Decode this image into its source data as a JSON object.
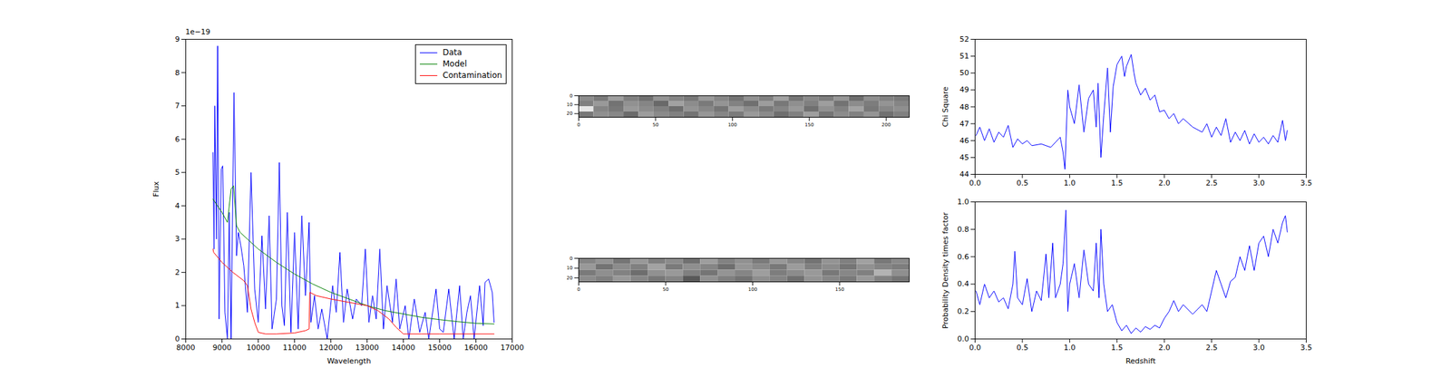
{
  "chart_data": [
    {
      "type": "line",
      "x_label": "Wavelength",
      "y_label": "Flux",
      "annotations": [
        {
          "text": "1e−19"
        }
      ],
      "xlim": [
        8000,
        17000
      ],
      "xticks": [
        8000,
        9000,
        10000,
        11000,
        12000,
        13000,
        14000,
        15000,
        16000,
        17000
      ],
      "ylim": [
        0,
        9
      ],
      "yticks": [
        0,
        1,
        2,
        3,
        4,
        5,
        6,
        7,
        8,
        9
      ],
      "grid": false,
      "legend": "upper right",
      "series": [
        {
          "name": "Data",
          "color": "#0000ff",
          "x": [
            8750,
            8780,
            8800,
            8850,
            8880,
            8920,
            8980,
            9020,
            9080,
            9150,
            9200,
            9250,
            9330,
            9400,
            9450,
            9520,
            9600,
            9700,
            9800,
            9900,
            10000,
            10100,
            10200,
            10300,
            10380,
            10500,
            10580,
            10650,
            10720,
            10800,
            10900,
            11000,
            11100,
            11200,
            11300,
            11400,
            11450,
            11550,
            11650,
            11750,
            11900,
            12050,
            12150,
            12250,
            12350,
            12450,
            12600,
            12700,
            12850,
            12950,
            13050,
            13150,
            13250,
            13350,
            13450,
            13550,
            13700,
            13800,
            13900,
            14050,
            14150,
            14300,
            14450,
            14600,
            14700,
            14900,
            15000,
            15100,
            15250,
            15400,
            15550,
            15650,
            15750,
            15850,
            15950,
            16100,
            16200,
            16250,
            16350,
            16450,
            16500
          ],
          "values": [
            5.6,
            2.7,
            7.0,
            3.0,
            8.8,
            0.6,
            5.1,
            5.2,
            0.8,
            0,
            3.8,
            0,
            7.4,
            2.5,
            3.2,
            2.8,
            2.2,
            0.8,
            5.0,
            1.5,
            0.5,
            3.1,
            0.9,
            3.7,
            0.3,
            1.2,
            5.3,
            1.0,
            0.4,
            3.8,
            0.2,
            3.2,
            0.3,
            3.7,
            1.3,
            3.5,
            0.5,
            1.3,
            0.3,
            0.9,
            0,
            1.6,
            0.8,
            2.6,
            0.5,
            1.5,
            0.6,
            1.2,
            1.0,
            2.7,
            0.5,
            1.3,
            0.6,
            2.7,
            0.3,
            1.6,
            0.5,
            1.8,
            0.3,
            1.0,
            0,
            1.2,
            0.2,
            0.8,
            0,
            1.5,
            0.3,
            0.2,
            1.5,
            0,
            1.6,
            0,
            0.8,
            1.3,
            0,
            1.6,
            0.4,
            1.7,
            1.8,
            1.4,
            0.5
          ]
        },
        {
          "name": "Model",
          "color": "#008000",
          "x": [
            8750,
            9000,
            9150,
            9250,
            9320,
            9400,
            9500,
            10000,
            10500,
            11000,
            11500,
            12000,
            12500,
            13000,
            13500,
            14000,
            14500,
            15000,
            15500,
            16000,
            16500
          ],
          "values": [
            4.2,
            3.8,
            3.5,
            4.5,
            4.6,
            3.4,
            3.2,
            2.7,
            2.3,
            1.95,
            1.65,
            1.4,
            1.2,
            1.0,
            0.85,
            0.75,
            0.65,
            0.58,
            0.52,
            0.47,
            0.45
          ]
        },
        {
          "name": "Contamination",
          "color": "#ff0000",
          "x": [
            8750,
            8770,
            9000,
            9300,
            9600,
            9700,
            9800,
            9900,
            10000,
            10200,
            10500,
            11000,
            11300,
            11400,
            11420,
            11600,
            12000,
            12500,
            13000,
            13300,
            13600,
            13800,
            14000,
            14500,
            15000,
            16500
          ],
          "values": [
            2.7,
            2.6,
            2.3,
            2.0,
            1.75,
            1.6,
            0.9,
            0.5,
            0.2,
            0.15,
            0.15,
            0.18,
            0.25,
            0.3,
            1.4,
            1.3,
            1.2,
            1.1,
            1.0,
            0.85,
            0.6,
            0.35,
            0.15,
            0.15,
            0.15,
            0.15
          ]
        }
      ]
    },
    {
      "type": "heatmap",
      "xlim": [
        0,
        215
      ],
      "xticks": [
        0,
        50,
        100,
        150,
        200
      ],
      "ylim": [
        0,
        24
      ],
      "yticks": [
        0,
        10,
        20
      ],
      "color_range": [
        0,
        1
      ],
      "cells": [
        [
          0.55,
          0.48,
          0.62,
          0.5,
          0.44,
          0.58,
          0.52,
          0.47,
          0.6,
          0.53,
          0.45,
          0.57,
          0.5,
          0.63,
          0.46,
          0.54,
          0.49,
          0.59,
          0.43,
          0.56,
          0.51,
          0.48
        ],
        [
          0.5,
          0.6,
          0.45,
          0.57,
          0.52,
          0.41,
          0.63,
          0.55,
          0.48,
          0.58,
          0.51,
          0.44,
          0.61,
          0.47,
          0.56,
          0.5,
          0.62,
          0.45,
          0.55,
          0.49,
          0.58,
          0.52
        ],
        [
          0.9,
          0.52,
          0.47,
          0.6,
          0.55,
          0.5,
          0.43,
          0.58,
          0.53,
          0.46,
          0.62,
          0.55,
          0.48,
          0.52,
          0.6,
          0.44,
          0.57,
          0.51,
          0.64,
          0.47,
          0.53,
          0.56
        ],
        [
          0.47,
          0.56,
          0.53,
          0.42,
          0.61,
          0.54,
          0.5,
          0.45,
          0.59,
          0.52,
          0.48,
          0.6,
          0.54,
          0.43,
          0.5,
          0.62,
          0.46,
          0.55,
          0.5,
          0.58,
          0.44,
          0.5
        ]
      ]
    },
    {
      "type": "heatmap",
      "xlim": [
        0,
        190
      ],
      "xticks": [
        0,
        50,
        100,
        150
      ],
      "ylim": [
        0,
        24
      ],
      "yticks": [
        0,
        10,
        20
      ],
      "color_range": [
        0,
        1
      ],
      "cells": [
        [
          0.52,
          0.58,
          0.46,
          0.6,
          0.5,
          0.55,
          0.44,
          0.62,
          0.51,
          0.57,
          0.48,
          0.6,
          0.53,
          0.45,
          0.58,
          0.5,
          0.63,
          0.47,
          0.54
        ],
        [
          0.6,
          0.45,
          0.55,
          0.5,
          0.64,
          0.48,
          0.56,
          0.52,
          0.43,
          0.59,
          0.54,
          0.47,
          0.61,
          0.5,
          0.55,
          0.46,
          0.57,
          0.52,
          0.49
        ],
        [
          0.48,
          0.56,
          0.51,
          0.43,
          0.57,
          0.6,
          0.5,
          0.46,
          0.58,
          0.52,
          0.62,
          0.49,
          0.55,
          0.6,
          0.47,
          0.53,
          0.5,
          0.7,
          0.56
        ],
        [
          0.55,
          0.5,
          0.6,
          0.53,
          0.47,
          0.52,
          0.35,
          0.57,
          0.5,
          0.45,
          0.56,
          0.52,
          0.44,
          0.58,
          0.53,
          0.48,
          0.6,
          0.51,
          0.46
        ]
      ]
    },
    {
      "type": "line",
      "y_label": "Chi Square",
      "xlim": [
        0,
        3.5
      ],
      "xticks": [
        {
          "value": 0,
          "label": "0.0"
        },
        {
          "value": 0.5,
          "label": "0.5"
        },
        {
          "value": 1,
          "label": "1.0"
        },
        {
          "value": 1.5,
          "label": "1.5"
        },
        {
          "value": 2,
          "label": "2.0"
        },
        {
          "value": 2.5,
          "label": "2.5"
        },
        {
          "value": 3,
          "label": "3.0"
        },
        {
          "value": 3.5,
          "label": "3.5"
        }
      ],
      "ylim": [
        44,
        52
      ],
      "yticks": [
        44,
        45,
        46,
        47,
        48,
        49,
        50,
        51,
        52
      ],
      "grid": false,
      "color": "#0000ff",
      "x": [
        0.01,
        0.05,
        0.1,
        0.15,
        0.2,
        0.25,
        0.3,
        0.35,
        0.4,
        0.45,
        0.5,
        0.55,
        0.6,
        0.7,
        0.8,
        0.85,
        0.9,
        0.93,
        0.95,
        0.98,
        1.0,
        1.05,
        1.1,
        1.15,
        1.2,
        1.25,
        1.28,
        1.3,
        1.33,
        1.36,
        1.4,
        1.43,
        1.46,
        1.5,
        1.55,
        1.58,
        1.6,
        1.65,
        1.68,
        1.7,
        1.75,
        1.8,
        1.85,
        1.9,
        1.95,
        2.0,
        2.05,
        2.1,
        2.15,
        2.2,
        2.3,
        2.4,
        2.45,
        2.5,
        2.55,
        2.6,
        2.65,
        2.7,
        2.75,
        2.8,
        2.85,
        2.9,
        2.95,
        3.0,
        3.05,
        3.1,
        3.15,
        3.2,
        3.25,
        3.28,
        3.3
      ],
      "values": [
        46.3,
        46.8,
        46.0,
        46.7,
        45.9,
        46.5,
        46.2,
        46.9,
        45.6,
        46.1,
        45.8,
        46.0,
        45.7,
        45.8,
        45.6,
        45.9,
        46.2,
        45.3,
        44.3,
        49.0,
        48.0,
        47.0,
        49.3,
        46.5,
        48.5,
        49.0,
        46.8,
        49.4,
        45.0,
        47.5,
        50.3,
        46.5,
        49.2,
        50.5,
        51.0,
        49.8,
        50.4,
        51.1,
        50.0,
        49.4,
        48.7,
        49.1,
        48.4,
        48.7,
        47.7,
        47.8,
        47.3,
        47.6,
        47.0,
        47.3,
        46.8,
        46.5,
        47.0,
        46.2,
        46.8,
        46.3,
        47.3,
        45.9,
        46.5,
        46.0,
        46.6,
        45.8,
        46.4,
        45.9,
        46.2,
        45.8,
        46.3,
        45.9,
        47.2,
        46.0,
        46.6
      ]
    },
    {
      "type": "line",
      "x_label": "Redshift",
      "y_label": "Probability Density times factor",
      "xlim": [
        0,
        3.5
      ],
      "xticks": [
        {
          "value": 0,
          "label": "0.0"
        },
        {
          "value": 0.5,
          "label": "0.5"
        },
        {
          "value": 1,
          "label": "1.0"
        },
        {
          "value": 1.5,
          "label": "1.5"
        },
        {
          "value": 2,
          "label": "2.0"
        },
        {
          "value": 2.5,
          "label": "2.5"
        },
        {
          "value": 3,
          "label": "3.0"
        },
        {
          "value": 3.5,
          "label": "3.5"
        }
      ],
      "ylim": [
        0,
        1
      ],
      "yticks": [
        {
          "value": 0,
          "label": "0.0"
        },
        {
          "value": 0.2,
          "label": "0.2"
        },
        {
          "value": 0.4,
          "label": "0.4"
        },
        {
          "value": 0.6,
          "label": "0.6"
        },
        {
          "value": 0.8,
          "label": "0.8"
        },
        {
          "value": 1,
          "label": "1.0"
        }
      ],
      "grid": false,
      "color": "#0000ff",
      "x": [
        0.01,
        0.05,
        0.1,
        0.15,
        0.2,
        0.25,
        0.3,
        0.35,
        0.4,
        0.42,
        0.45,
        0.5,
        0.55,
        0.6,
        0.65,
        0.7,
        0.75,
        0.78,
        0.82,
        0.85,
        0.9,
        0.93,
        0.96,
        0.98,
        1.0,
        1.05,
        1.1,
        1.15,
        1.2,
        1.25,
        1.28,
        1.31,
        1.33,
        1.36,
        1.4,
        1.45,
        1.5,
        1.55,
        1.6,
        1.65,
        1.7,
        1.75,
        1.8,
        1.85,
        1.9,
        1.95,
        2.0,
        2.05,
        2.1,
        2.15,
        2.2,
        2.3,
        2.4,
        2.45,
        2.5,
        2.55,
        2.6,
        2.65,
        2.7,
        2.75,
        2.8,
        2.85,
        2.9,
        2.95,
        3.0,
        3.05,
        3.1,
        3.15,
        3.2,
        3.25,
        3.28,
        3.3
      ],
      "values": [
        0.35,
        0.25,
        0.4,
        0.3,
        0.35,
        0.27,
        0.3,
        0.22,
        0.4,
        0.64,
        0.3,
        0.25,
        0.44,
        0.2,
        0.35,
        0.28,
        0.62,
        0.3,
        0.7,
        0.3,
        0.4,
        0.55,
        0.94,
        0.2,
        0.4,
        0.55,
        0.3,
        0.65,
        0.4,
        0.35,
        0.7,
        0.3,
        0.8,
        0.4,
        0.2,
        0.25,
        0.12,
        0.06,
        0.1,
        0.04,
        0.08,
        0.05,
        0.09,
        0.07,
        0.1,
        0.08,
        0.15,
        0.2,
        0.28,
        0.2,
        0.25,
        0.18,
        0.25,
        0.2,
        0.35,
        0.5,
        0.4,
        0.3,
        0.42,
        0.45,
        0.6,
        0.5,
        0.68,
        0.5,
        0.7,
        0.75,
        0.6,
        0.8,
        0.7,
        0.85,
        0.9,
        0.78
      ]
    }
  ]
}
